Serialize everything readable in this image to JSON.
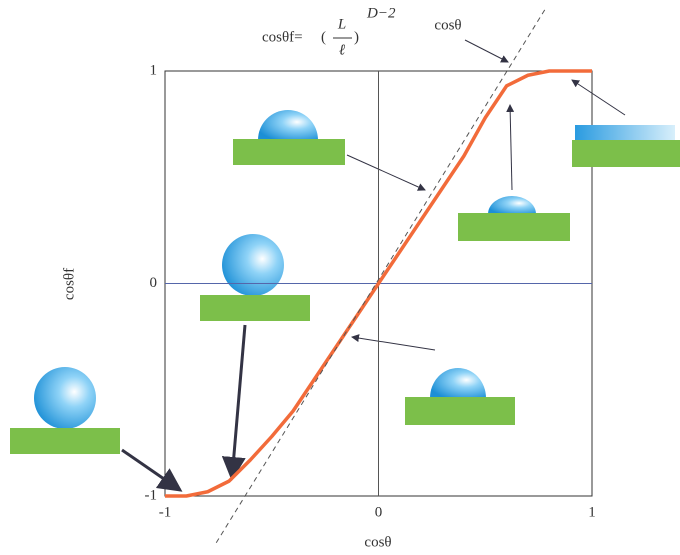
{
  "chart_data": {
    "type": "line",
    "x_label": "cosθ",
    "y_label": "cosθf",
    "formula": {
      "lhs": "cosθf=",
      "numerator": "L",
      "denominator": "ℓ",
      "exponent": "D−2"
    },
    "xlim": [
      -1,
      1
    ],
    "ylim": [
      -1,
      1
    ],
    "xticks": [
      -1,
      0,
      1
    ],
    "yticks": [
      -1,
      0,
      1
    ],
    "series": [
      {
        "color": "#f26b3a",
        "x": [
          -1,
          -0.9,
          -0.8,
          -0.7,
          -0.6,
          -0.5,
          -0.4,
          -0.2,
          0,
          0.2,
          0.4,
          0.5,
          0.6,
          0.7,
          0.8,
          0.9,
          1
        ],
        "values": [
          -1,
          -1,
          -0.98,
          -0.93,
          -0.83,
          -0.72,
          -0.6,
          -0.3,
          0,
          0.3,
          0.6,
          0.78,
          0.93,
          0.98,
          1,
          1,
          1
        ]
      },
      {
        "name": "cosθ",
        "color": "#555555",
        "dashed": true,
        "x": [
          -0.76,
          0.78
        ],
        "values": [
          -1.22,
          1.29
        ]
      }
    ]
  }
}
